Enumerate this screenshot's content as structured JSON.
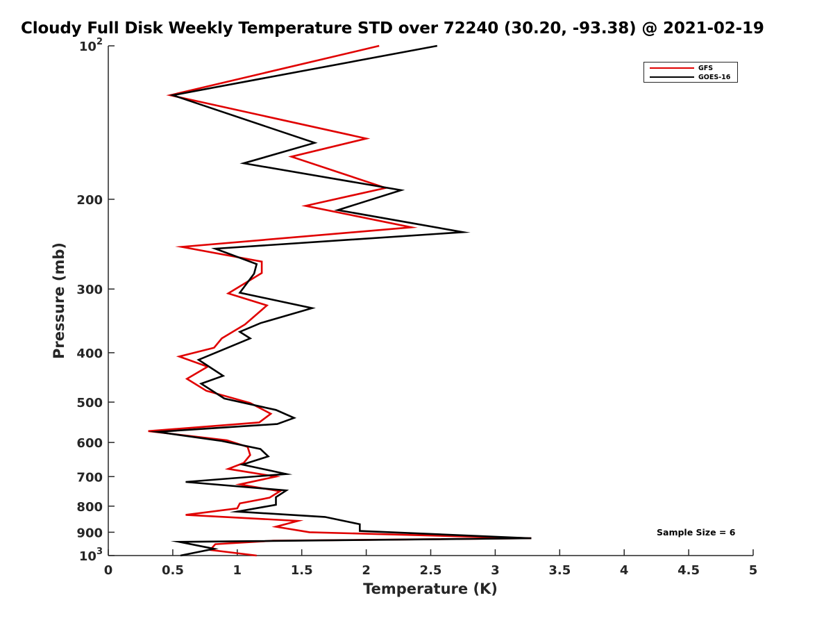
{
  "chart_data": {
    "type": "line",
    "title": "Cloudy Full Disk Weekly Temperature STD over 72240 (30.20, -93.38) @ 2021-02-19",
    "xlabel": "Temperature (K)",
    "ylabel": "Pressure (mb)",
    "xlim": [
      0,
      5
    ],
    "ylim": [
      100,
      1000
    ],
    "yscale": "log",
    "y_reversed": true,
    "xticks": [
      0,
      0.5,
      1,
      1.5,
      2,
      2.5,
      3,
      3.5,
      4,
      4.5,
      5
    ],
    "xtick_labels": [
      "0",
      "0.5",
      "1",
      "1.5",
      "2",
      "2.5",
      "3",
      "3.5",
      "4",
      "4.5",
      "5"
    ],
    "yticks": [
      100,
      200,
      300,
      400,
      500,
      600,
      700,
      800,
      900,
      1000
    ],
    "ytick_labels": [
      "10^2",
      "200",
      "300",
      "400",
      "500",
      "600",
      "700",
      "800",
      "900",
      "10^3"
    ],
    "grid": false,
    "legend_position": "top-right",
    "annotation": "Sample Size = 6",
    "series": [
      {
        "name": "GFS",
        "color": "#e00000",
        "points": [
          [
            2.1,
            100
          ],
          [
            0.48,
            125
          ],
          [
            2.0,
            152
          ],
          [
            1.42,
            165
          ],
          [
            2.15,
            190
          ],
          [
            1.53,
            206
          ],
          [
            2.35,
            227
          ],
          [
            0.57,
            248
          ],
          [
            1.19,
            265
          ],
          [
            1.19,
            279
          ],
          [
            0.93,
            306
          ],
          [
            1.23,
            323
          ],
          [
            1.06,
            352
          ],
          [
            0.88,
            375
          ],
          [
            0.82,
            391
          ],
          [
            0.55,
            407
          ],
          [
            0.77,
            426
          ],
          [
            0.61,
            450
          ],
          [
            0.76,
            475
          ],
          [
            1.1,
            502
          ],
          [
            1.26,
            527
          ],
          [
            1.17,
            548
          ],
          [
            0.31,
            570
          ],
          [
            0.92,
            594
          ],
          [
            1.08,
            612
          ],
          [
            1.1,
            635
          ],
          [
            1.05,
            658
          ],
          [
            0.93,
            676
          ],
          [
            1.3,
            700
          ],
          [
            1.02,
            725
          ],
          [
            1.33,
            748
          ],
          [
            1.25,
            770
          ],
          [
            1.02,
            790
          ],
          [
            1.0,
            808
          ],
          [
            0.6,
            832
          ],
          [
            1.47,
            855
          ],
          [
            1.3,
            878
          ],
          [
            1.56,
            900
          ],
          [
            3.28,
            925
          ],
          [
            1.28,
            935
          ],
          [
            0.83,
            950
          ],
          [
            0.79,
            975
          ],
          [
            1.15,
            1000
          ]
        ]
      },
      {
        "name": "GOES-16",
        "color": "#000000",
        "points": [
          [
            2.55,
            100
          ],
          [
            0.5,
            125
          ],
          [
            1.6,
            155
          ],
          [
            1.05,
            170
          ],
          [
            2.27,
            192
          ],
          [
            1.78,
            210
          ],
          [
            2.75,
            232
          ],
          [
            0.83,
            250
          ],
          [
            1.15,
            268
          ],
          [
            1.13,
            280
          ],
          [
            1.02,
            305
          ],
          [
            1.58,
            327
          ],
          [
            1.18,
            350
          ],
          [
            1.02,
            364
          ],
          [
            1.1,
            375
          ],
          [
            0.7,
            413
          ],
          [
            0.89,
            444
          ],
          [
            0.72,
            460
          ],
          [
            0.9,
            492
          ],
          [
            1.3,
            518
          ],
          [
            1.44,
            537
          ],
          [
            1.31,
            552
          ],
          [
            0.38,
            572
          ],
          [
            0.88,
            596
          ],
          [
            1.18,
            618
          ],
          [
            1.24,
            639
          ],
          [
            1.04,
            663
          ],
          [
            1.38,
            692
          ],
          [
            0.6,
            717
          ],
          [
            1.38,
            745
          ],
          [
            1.3,
            768
          ],
          [
            1.3,
            795
          ],
          [
            1.0,
            820
          ],
          [
            1.68,
            840
          ],
          [
            1.95,
            868
          ],
          [
            1.95,
            895
          ],
          [
            3.28,
            925
          ],
          [
            0.55,
            940
          ],
          [
            0.82,
            970
          ],
          [
            0.56,
            1000
          ]
        ]
      }
    ]
  }
}
